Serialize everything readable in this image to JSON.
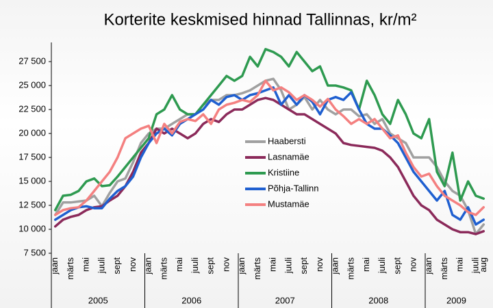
{
  "chart_data": {
    "type": "line",
    "title": "Korterite keskmised hinnad Tallinnas, kr/m²",
    "categories": [
      "jaan",
      null,
      "märts",
      null,
      "mai",
      null,
      "juuli",
      null,
      "sept",
      null,
      "nov",
      null,
      "jaan",
      null,
      "märts",
      null,
      "mai",
      null,
      "juuli",
      null,
      "sept",
      null,
      "nov",
      null,
      "jaan",
      null,
      "märts",
      null,
      "mai",
      null,
      "juuli",
      null,
      "sept",
      null,
      "nov",
      null,
      "jaan",
      null,
      "märts",
      null,
      "mai",
      null,
      "juuli",
      null,
      "sept",
      null,
      "nov",
      null,
      "jaan",
      null,
      "märts",
      null,
      "mai",
      null,
      "juuli",
      "aug"
    ],
    "years": [
      "2005",
      "2006",
      "2007",
      "2008",
      "2009"
    ],
    "ylim": [
      7500,
      29000
    ],
    "yticks": [
      {
        "value": 7500,
        "label": "7 500"
      },
      {
        "value": 10000,
        "label": "10 000"
      },
      {
        "value": 12500,
        "label": "12 500"
      },
      {
        "value": 15000,
        "label": "15 000"
      },
      {
        "value": 17500,
        "label": "17 500"
      },
      {
        "value": 20000,
        "label": "20 000"
      },
      {
        "value": 22500,
        "label": "22 500"
      },
      {
        "value": 25000,
        "label": "25 000"
      },
      {
        "value": 27500,
        "label": "27 500"
      }
    ],
    "series": [
      {
        "name": "Haabersti",
        "color": "#a0a0a0",
        "values": [
          11500,
          12800,
          12800,
          12900,
          13000,
          13500,
          12400,
          13800,
          15000,
          15300,
          17000,
          19000,
          20000,
          20500,
          20500,
          21000,
          21500,
          22000,
          22000,
          23000,
          23500,
          23500,
          24000,
          24000,
          24200,
          24500,
          25000,
          25500,
          25700,
          24500,
          22500,
          23000,
          23800,
          22500,
          23500,
          22500,
          22000,
          22500,
          22500,
          21800,
          22000,
          21000,
          21500,
          20000,
          19500,
          19000,
          17500,
          17500,
          17500,
          16500,
          15000,
          14000,
          13500,
          12000,
          9500,
          10500
        ]
      },
      {
        "name": "Lasnamäe",
        "color": "#8b2a5a",
        "values": [
          10300,
          11000,
          11300,
          11500,
          12000,
          12300,
          12400,
          13000,
          13500,
          14500,
          16000,
          18000,
          19000,
          20500,
          20000,
          20500,
          20000,
          19500,
          20000,
          21000,
          21500,
          21200,
          22000,
          22500,
          22500,
          23000,
          23500,
          23700,
          23500,
          23000,
          22500,
          22000,
          22000,
          21500,
          21000,
          20500,
          20000,
          19000,
          18800,
          18700,
          18600,
          18500,
          18200,
          17500,
          16500,
          15000,
          13500,
          12500,
          12000,
          11000,
          10500,
          10000,
          9700,
          9700,
          9500,
          9800
        ]
      },
      {
        "name": "Kristiine",
        "color": "#2e9a50",
        "values": [
          12000,
          13500,
          13600,
          14000,
          15000,
          15300,
          14500,
          14600,
          15500,
          16500,
          17500,
          18500,
          19500,
          22000,
          22500,
          24000,
          22500,
          22000,
          22000,
          23000,
          24000,
          25000,
          26000,
          25500,
          26000,
          28000,
          27000,
          28800,
          28500,
          28000,
          27000,
          28500,
          27500,
          26500,
          27000,
          25000,
          25000,
          24800,
          24500,
          22500,
          25500,
          24000,
          22000,
          21000,
          23500,
          22000,
          20000,
          19500,
          21500,
          16000,
          14500,
          18000,
          13000,
          15000,
          13500,
          13200
        ]
      },
      {
        "name": "Põhja-Tallinn",
        "color": "#1f5fd0",
        "values": [
          11000,
          11500,
          12000,
          12300,
          12400,
          12200,
          12200,
          13200,
          14000,
          14500,
          15500,
          17500,
          19000,
          20000,
          20500,
          19800,
          21000,
          21500,
          22000,
          22500,
          23500,
          23000,
          23800,
          24000,
          23500,
          24000,
          24200,
          24500,
          24800,
          23000,
          24000,
          23000,
          24000,
          23300,
          22000,
          23500,
          23800,
          23500,
          24300,
          22500,
          21000,
          20500,
          20500,
          19800,
          19000,
          17500,
          16000,
          15000,
          14000,
          13000,
          14000,
          11500,
          11000,
          12300,
          10500,
          11000
        ]
      },
      {
        "name": "Mustamäe",
        "color": "#f48080",
        "values": [
          11500,
          12000,
          12200,
          12300,
          13000,
          14000,
          15000,
          16000,
          17500,
          19500,
          20000,
          20500,
          20800,
          19000,
          21000,
          20000,
          21200,
          21500,
          21300,
          22000,
          21000,
          22500,
          23000,
          23200,
          23500,
          23300,
          24000,
          25500,
          24500,
          24800,
          24300,
          23500,
          24000,
          23500,
          22800,
          23600,
          22500,
          21800,
          21000,
          21500,
          21000,
          21500,
          20500,
          19500,
          19800,
          18000,
          16500,
          15500,
          15800,
          14500,
          13500,
          13000,
          12500,
          11800,
          11500,
          12300
        ]
      }
    ]
  }
}
